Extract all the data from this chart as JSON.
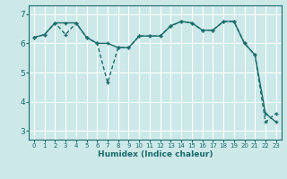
{
  "xlabel": "Humidex (Indice chaleur)",
  "background_color": "#cce8e8",
  "plot_bg_color": "#cce8e8",
  "line_color": "#1a6b6b",
  "grid_color": "#ffffff",
  "xlim": [
    -0.5,
    23.5
  ],
  "ylim": [
    2.7,
    7.3
  ],
  "yticks": [
    3,
    4,
    5,
    6,
    7
  ],
  "xticks": [
    0,
    1,
    2,
    3,
    4,
    5,
    6,
    7,
    8,
    9,
    10,
    11,
    12,
    13,
    14,
    15,
    16,
    17,
    18,
    19,
    20,
    21,
    22,
    23
  ],
  "series1_x": [
    0,
    1,
    2,
    3,
    4,
    5,
    6,
    7,
    8,
    9,
    10,
    11,
    12,
    13,
    14,
    15,
    16,
    17,
    18,
    19,
    20,
    21,
    22,
    23
  ],
  "series1_y": [
    6.2,
    6.3,
    6.7,
    6.7,
    6.7,
    6.2,
    6.0,
    6.0,
    5.85,
    5.85,
    6.25,
    6.25,
    6.25,
    6.6,
    6.75,
    6.7,
    6.45,
    6.45,
    6.75,
    6.75,
    6.0,
    5.6,
    3.6,
    3.3
  ],
  "series2_x": [
    0,
    1,
    2,
    3,
    4,
    5,
    6,
    7,
    8,
    9,
    10,
    11,
    12,
    13,
    14,
    15,
    16,
    17,
    18,
    19,
    20,
    21,
    22,
    23
  ],
  "series2_y": [
    6.2,
    6.3,
    6.7,
    6.3,
    6.7,
    6.2,
    6.0,
    4.65,
    5.85,
    5.85,
    6.25,
    6.25,
    6.25,
    6.6,
    6.75,
    6.7,
    6.45,
    6.45,
    6.75,
    6.75,
    6.0,
    5.6,
    3.3,
    3.6
  ]
}
